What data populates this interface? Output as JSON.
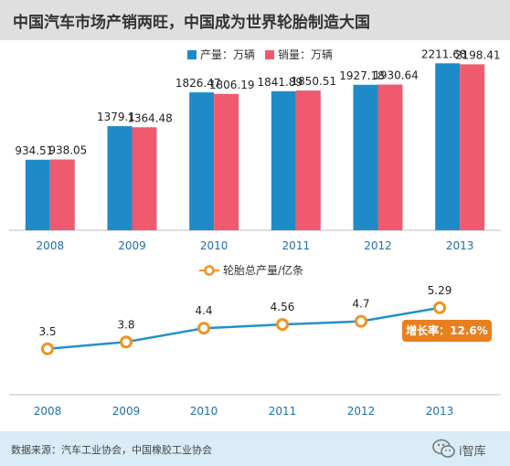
{
  "header": {
    "title": "中国汽车市场产销两旺，中国成为世界轮胎制造大国"
  },
  "footer": {
    "source": "数据来源：汽车工业协会，中国橡胶工业协会",
    "logo_text": "i智库"
  },
  "colors": {
    "production": "#1e8bc8",
    "sales": "#f05a6e",
    "tire_line": "#2590c8",
    "tire_marker": "#f0931f",
    "badge": "#e8801f"
  },
  "chart_data": [
    {
      "type": "bar",
      "title": "",
      "xlabel": "",
      "ylabel": "",
      "categories": [
        "2008",
        "2009",
        "2010",
        "2011",
        "2012",
        "2013"
      ],
      "series": [
        {
          "name": "产量：万辆",
          "values": [
            934.51,
            1379.1,
            1826.47,
            1841.89,
            1927.18,
            2211.68
          ]
        },
        {
          "name": "销量：万辆",
          "values": [
            938.05,
            1364.48,
            1806.19,
            1850.51,
            1930.64,
            2198.41
          ]
        }
      ],
      "ylim": [
        0,
        2300
      ],
      "legend": "top",
      "grid": false
    },
    {
      "type": "line",
      "title": "",
      "xlabel": "",
      "ylabel": "",
      "categories": [
        "2008",
        "2009",
        "2010",
        "2011",
        "2012",
        "2013"
      ],
      "series": [
        {
          "name": "轮胎总产量/亿条",
          "values": [
            3.5,
            3.8,
            4.4,
            4.56,
            4.7,
            5.29
          ]
        }
      ],
      "ylim": [
        1.5,
        6.2
      ],
      "legend": "top",
      "grid": false,
      "annotation": "增长率：12.6%"
    }
  ]
}
